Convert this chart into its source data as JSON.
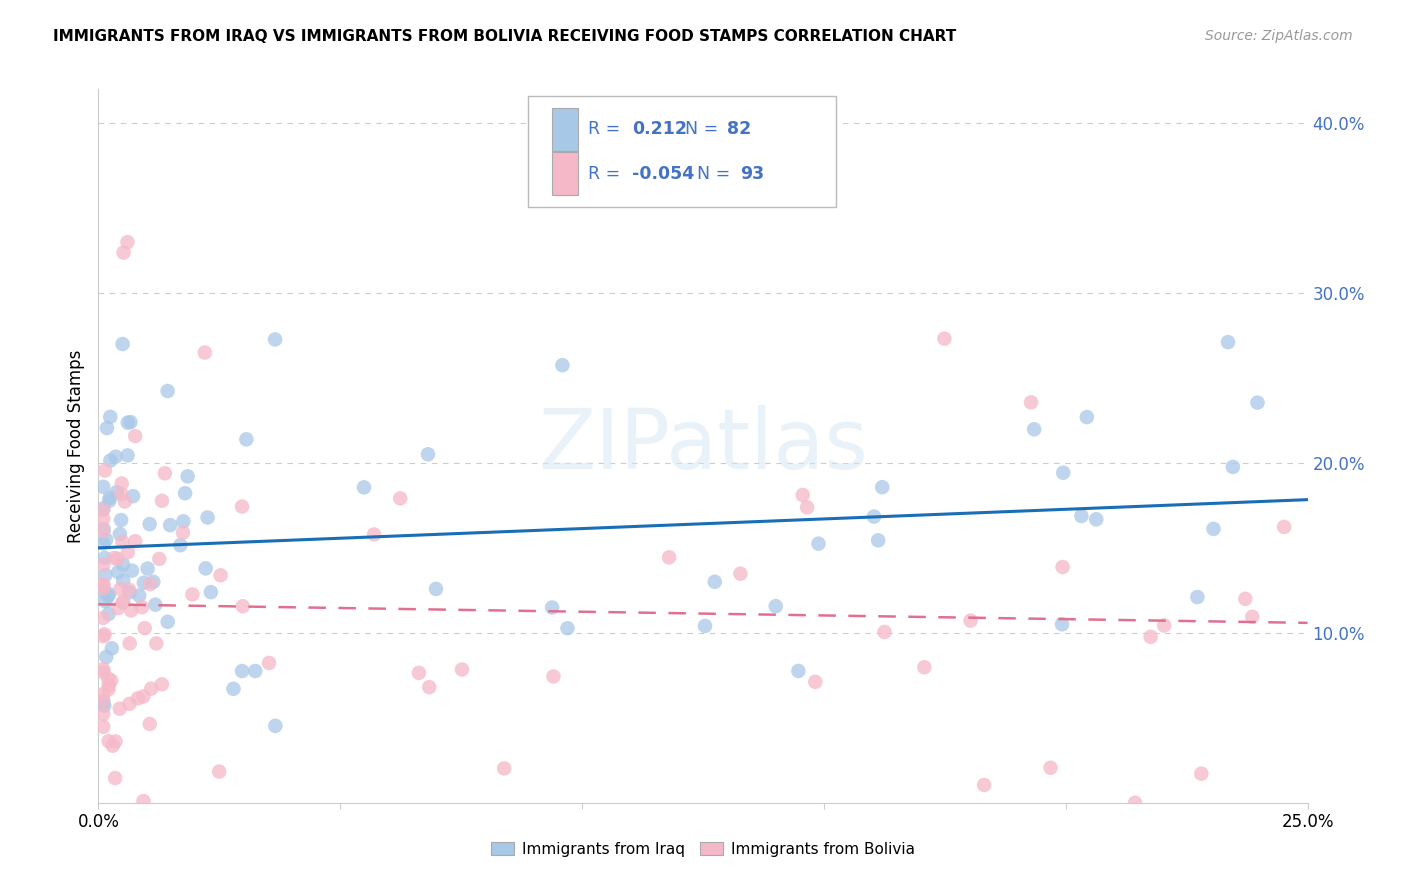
{
  "title": "IMMIGRANTS FROM IRAQ VS IMMIGRANTS FROM BOLIVIA RECEIVING FOOD STAMPS CORRELATION CHART",
  "source": "Source: ZipAtlas.com",
  "ylabel": "Receiving Food Stamps",
  "xlim": [
    0.0,
    0.25
  ],
  "ylim": [
    0.0,
    0.42
  ],
  "iraq_R": 0.212,
  "iraq_N": 82,
  "bolivia_R": -0.054,
  "bolivia_N": 93,
  "iraq_color": "#a8c8e8",
  "iraq_line_color": "#1a6eb5",
  "bolivia_color": "#f5b8c8",
  "bolivia_line_color": "#e07090",
  "watermark_color": "#d8e8f5",
  "grid_color": "#cccccc",
  "legend_label_iraq": "Immigrants from Iraq",
  "legend_label_bolivia": "Immigrants from Bolivia",
  "legend_text_color": "#4472c4",
  "title_fontsize": 11,
  "source_fontsize": 10,
  "tick_fontsize": 12,
  "ylabel_fontsize": 12
}
